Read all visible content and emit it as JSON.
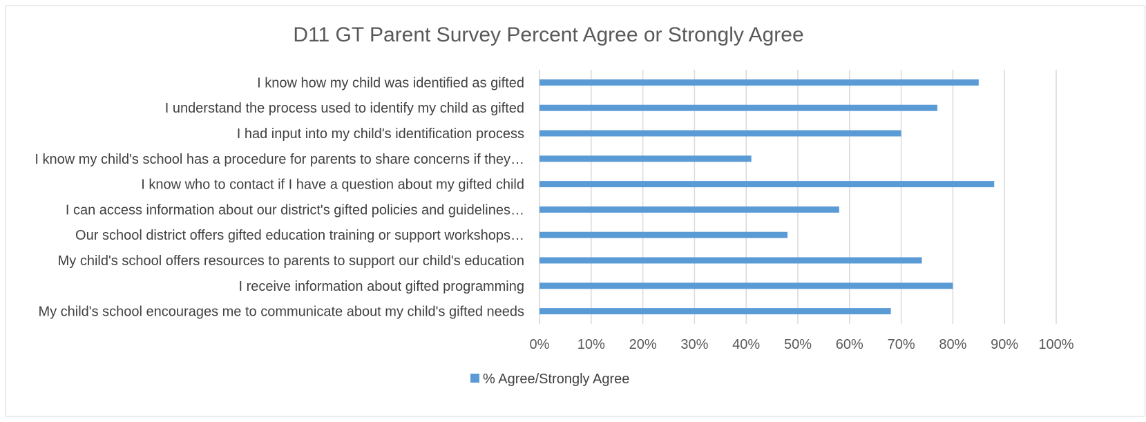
{
  "chart_data": {
    "type": "bar",
    "orientation": "horizontal",
    "title": "D11 GT Parent Survey Percent Agree or Strongly Agree",
    "categories": [
      "I know how my child was identified as gifted",
      "I understand the process used to identify my child as gifted",
      "I had input into my child's identification process",
      "I know my child's school has a procedure for parents to share concerns if they…",
      "I know who to contact if I have a question about my gifted child",
      "I can access information about our district's gifted policies and guidelines…",
      "Our school district offers gifted education training or support workshops…",
      "My child's school offers resources to parents to support our child's education",
      "I receive information about gifted programming",
      "My child's school encourages me to communicate about my child's gifted needs"
    ],
    "series": [
      {
        "name": "% Agree/Strongly Agree",
        "values": [
          0.85,
          0.77,
          0.7,
          0.41,
          0.88,
          0.58,
          0.48,
          0.74,
          0.8,
          0.68
        ]
      }
    ],
    "xlim": [
      0,
      1
    ],
    "xticks": [
      "0%",
      "10%",
      "20%",
      "30%",
      "40%",
      "50%",
      "60%",
      "70%",
      "80%",
      "90%",
      "100%"
    ],
    "xlabel": "",
    "ylabel": "",
    "grid": "vertical",
    "legend_position": "bottom",
    "bar_color": "#5b9bd5"
  }
}
